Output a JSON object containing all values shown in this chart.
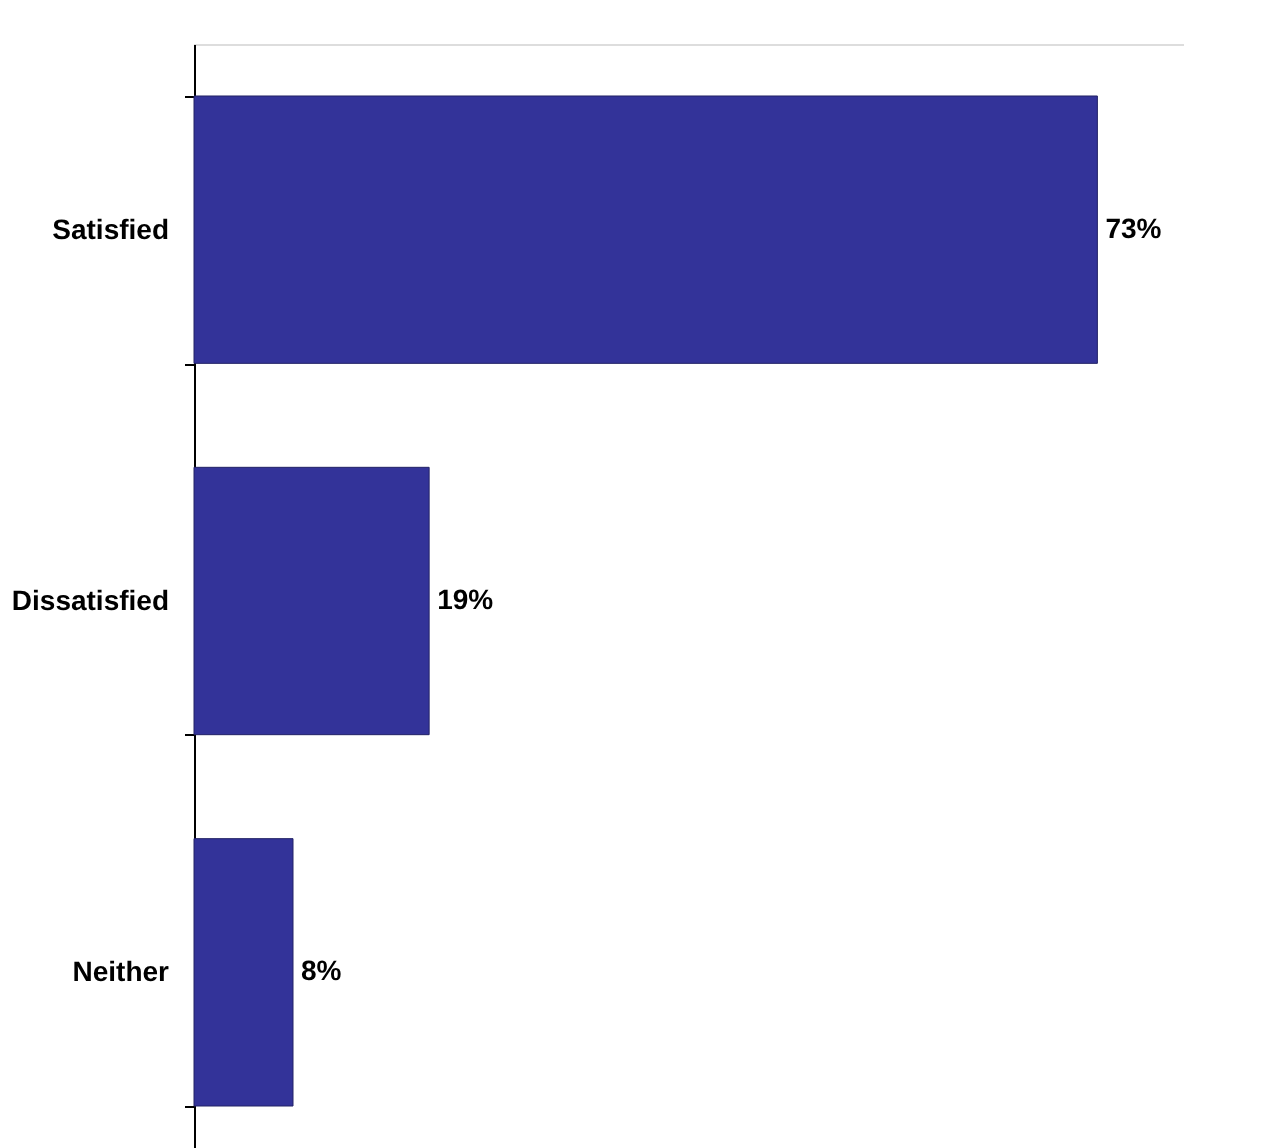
{
  "chart_data": {
    "type": "bar",
    "orientation": "horizontal",
    "categories": [
      "Satisfied",
      "Dissatisfied",
      "Neither"
    ],
    "values": [
      73,
      19,
      8
    ],
    "value_labels": [
      "73%",
      "19%",
      "8%"
    ],
    "color": "#333399"
  }
}
